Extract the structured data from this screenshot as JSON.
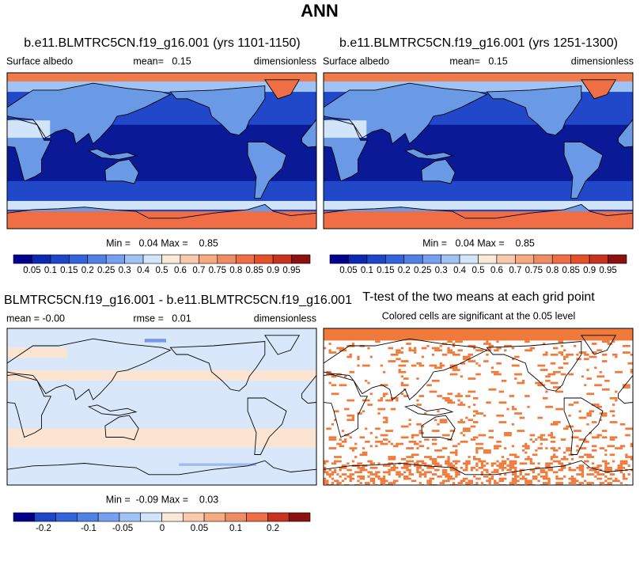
{
  "title": "ANN",
  "panels": [
    {
      "title": "b.e11.BLMTRC5CN.f19_g16.001 (yrs 1101-1150)",
      "left": "Surface albedo",
      "center": "mean=   0.15",
      "right": "dimensionless",
      "stats": "Min =   0.04 Max =    0.85"
    },
    {
      "title": "b.e11.BLMTRC5CN.f19_g16.001 (yrs 1251-1300)",
      "left": "Surface albedo",
      "center": "mean=   0.15",
      "right": "dimensionless",
      "stats": "Min =   0.04 Max =    0.85"
    },
    {
      "title": "BLMTRC5CN.f19_g16.001 - b.e11.BLMTRC5CN.f19_g16.001",
      "left": "mean = -0.00",
      "center": "rmse =   0.01",
      "right": "dimensionless",
      "stats": "Min =  -0.09 Max =    0.03"
    },
    {
      "title": "T-test of the two means at each grid point",
      "subtitle": "Colored cells are significant at the 0.05 level"
    }
  ],
  "colorbars": [
    {
      "colors": [
        "#00008c",
        "#0a28b4",
        "#1e46c8",
        "#3264dc",
        "#5082e6",
        "#78a0f0",
        "#a0c3f5",
        "#d2e4fa",
        "#fae8d8",
        "#fac8aa",
        "#f5aa82",
        "#f08c64",
        "#f06e46",
        "#e65028",
        "#c8321e",
        "#8c1010"
      ],
      "labels": [
        "0.05",
        "0.1",
        "0.15",
        "0.2",
        "0.25",
        "0.3",
        "0.4",
        "0.5",
        "0.6",
        "0.7",
        "0.75",
        "0.8",
        "0.85",
        "0.9",
        "0.95"
      ]
    },
    {
      "colors": [
        "#00008c",
        "#0a28b4",
        "#1e46c8",
        "#3264dc",
        "#5082e6",
        "#78a0f0",
        "#a0c3f5",
        "#d2e4fa",
        "#fae8d8",
        "#fac8aa",
        "#f5aa82",
        "#f08c64",
        "#f06e46",
        "#e65028",
        "#c8321e",
        "#8c1010"
      ],
      "labels": [
        "0.05",
        "0.1",
        "0.15",
        "0.2",
        "0.25",
        "0.3",
        "0.4",
        "0.5",
        "0.6",
        "0.7",
        "0.75",
        "0.8",
        "0.85",
        "0.9",
        "0.95"
      ]
    },
    {
      "colors": [
        "#00008c",
        "#1e46c8",
        "#3264dc",
        "#5082e6",
        "#78a0f0",
        "#a0c3f5",
        "#d2e4fa",
        "#fae8d8",
        "#fac8aa",
        "#f5aa82",
        "#f08c64",
        "#f06e46",
        "#c8321e",
        "#8c1010"
      ],
      "labels": [
        "-0.2",
        "-0.1",
        "-0.05",
        "0",
        "0.05",
        "0.1",
        "0.2"
      ]
    }
  ]
}
